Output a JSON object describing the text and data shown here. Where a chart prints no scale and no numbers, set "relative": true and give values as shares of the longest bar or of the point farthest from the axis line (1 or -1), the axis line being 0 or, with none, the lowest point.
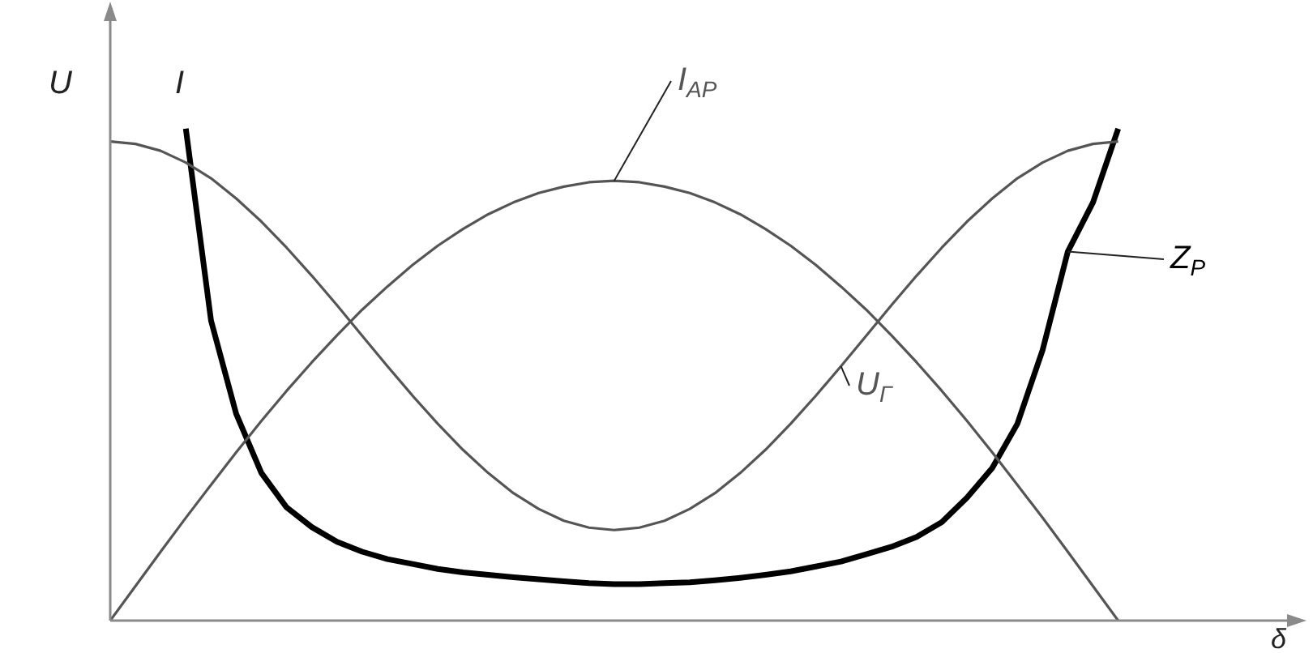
{
  "chart_data": {
    "type": "line",
    "relative": true,
    "xlabel": "δ",
    "ylabel": "U",
    "annotations": [
      "I"
    ],
    "categories": [
      null,
      null,
      null,
      null,
      null,
      null,
      null,
      null,
      null,
      null,
      null,
      null,
      null,
      null,
      null,
      null,
      null,
      null,
      null,
      null,
      null,
      null,
      null,
      null,
      null,
      null,
      null,
      null,
      null,
      null,
      null,
      null,
      null,
      null,
      null,
      null,
      null,
      null,
      null,
      null,
      null,
      null,
      null,
      null,
      null
    ],
    "series": [
      {
        "name": "I$_{AP}$",
        "color": "#555555",
        "values": [
          0,
          0.07,
          0.14,
          0.209,
          0.276,
          0.342,
          0.406,
          0.467,
          0.525,
          0.58,
          0.632,
          0.679,
          0.723,
          0.762,
          0.796,
          0.826,
          0.85,
          0.869,
          0.882,
          0.891,
          0.894,
          0.891,
          0.882,
          0.869,
          0.85,
          0.826,
          0.796,
          0.762,
          0.723,
          0.679,
          0.632,
          0.58,
          0.525,
          0.467,
          0.406,
          0.342,
          0.276,
          0.209,
          0.14,
          0.07,
          0,
          null,
          null,
          null,
          null
        ]
      },
      {
        "name": "U$_{Г}$",
        "color": "#555555",
        "values": [
          0.974,
          0.969,
          0.955,
          0.931,
          0.899,
          0.858,
          0.811,
          0.758,
          0.701,
          0.641,
          0.579,
          0.517,
          0.457,
          0.4,
          0.347,
          0.3,
          0.259,
          0.227,
          0.203,
          0.189,
          0.184,
          0.189,
          0.203,
          0.227,
          0.259,
          0.3,
          0.347,
          0.4,
          0.457,
          0.517,
          0.579,
          0.641,
          0.701,
          0.758,
          0.811,
          0.858,
          0.899,
          0.931,
          0.955,
          0.969,
          0.974,
          null,
          null,
          null,
          null
        ]
      },
      {
        "name": "Z$_{P}$",
        "color": "#000000",
        "values": [
          null,
          null,
          null,
          1,
          0.61,
          0.42,
          0.3,
          0.23,
          0.19,
          0.16,
          0.14,
          0.125,
          0.115,
          0.105,
          0.098,
          0.093,
          0.088,
          0.084,
          0.08,
          0.076,
          0.074,
          0.074,
          0.076,
          0.078,
          0.082,
          0.087,
          0.093,
          0.1,
          0.11,
          0.12,
          0.135,
          0.15,
          0.17,
          0.2,
          0.25,
          0.31,
          0.4,
          0.55,
          0.75,
          0.85,
          1,
          null,
          null,
          null,
          null
        ]
      }
    ]
  }
}
